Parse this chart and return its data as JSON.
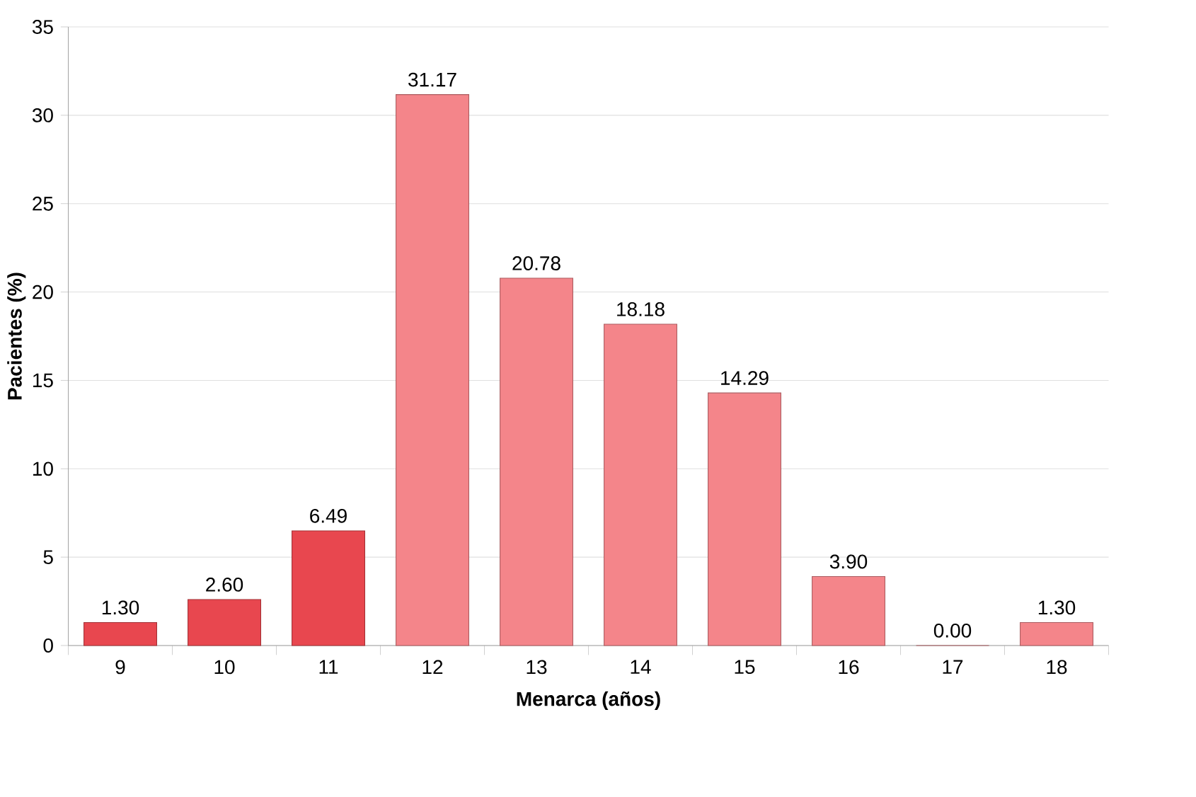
{
  "chart_data": {
    "type": "bar",
    "xlabel": "Menarca (años)",
    "ylabel": "Pacientes (%)",
    "categories": [
      "9",
      "10",
      "11",
      "12",
      "13",
      "14",
      "15",
      "16",
      "17",
      "18"
    ],
    "values": [
      1.3,
      2.6,
      6.49,
      31.17,
      20.78,
      18.18,
      14.29,
      3.9,
      0.0,
      1.3
    ],
    "value_labels": [
      "1.30",
      "2.60",
      "6.49",
      "31.17",
      "20.78",
      "18.18",
      "14.29",
      "3.90",
      "0.00",
      "1.30"
    ],
    "colors": [
      "#e8474f",
      "#e8474f",
      "#e8474f",
      "#f4858a",
      "#f4858a",
      "#f4858a",
      "#f4858a",
      "#f4858a",
      "#f4858a",
      "#f4858a"
    ],
    "ylim": [
      0,
      35
    ],
    "yticks": [
      0,
      5,
      10,
      15,
      20,
      25,
      30,
      35
    ],
    "grid": "y"
  }
}
